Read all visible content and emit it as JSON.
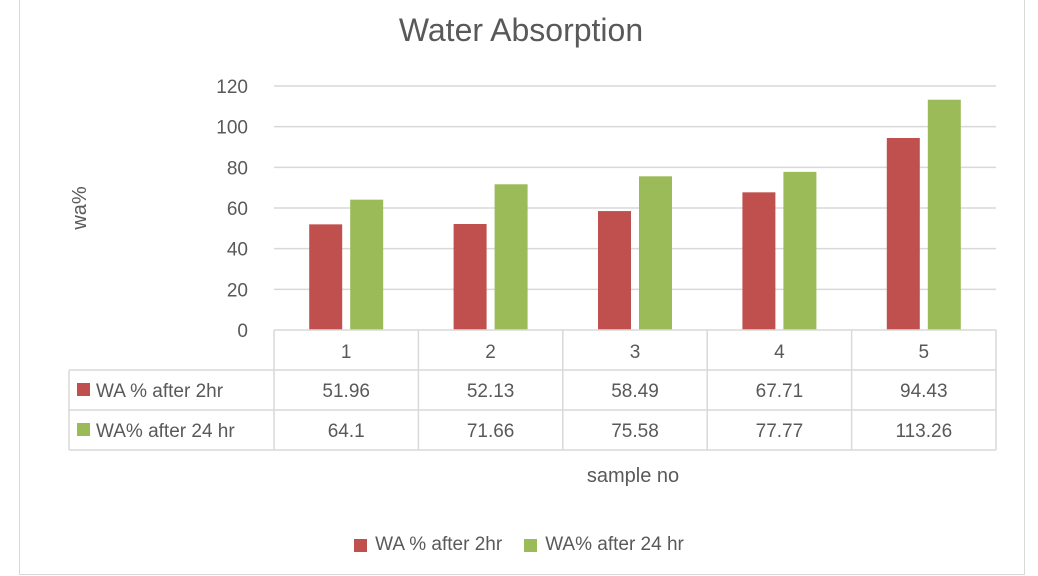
{
  "chart_data": {
    "type": "bar",
    "title": "Water Absorption",
    "xlabel": "sample no",
    "ylabel": "wa%",
    "categories": [
      "1",
      "2",
      "3",
      "4",
      "5"
    ],
    "ylim": [
      0,
      120
    ],
    "yticks": [
      0,
      20,
      40,
      60,
      80,
      100,
      120
    ],
    "grid": true,
    "legend_position": "bottom",
    "data_table": true,
    "series": [
      {
        "name": "WA % after 2hr",
        "color": "#c0504d",
        "values": [
          51.96,
          52.13,
          58.49,
          67.71,
          94.43
        ],
        "labels": [
          "51.96",
          "52.13",
          "58.49",
          "67.71",
          "94.43"
        ]
      },
      {
        "name": "WA% after 24 hr",
        "color": "#9bbb59",
        "values": [
          64.1,
          71.66,
          75.58,
          77.77,
          113.26
        ],
        "labels": [
          "64.1",
          "71.66",
          "75.58",
          "77.77",
          "113.26"
        ]
      }
    ]
  }
}
